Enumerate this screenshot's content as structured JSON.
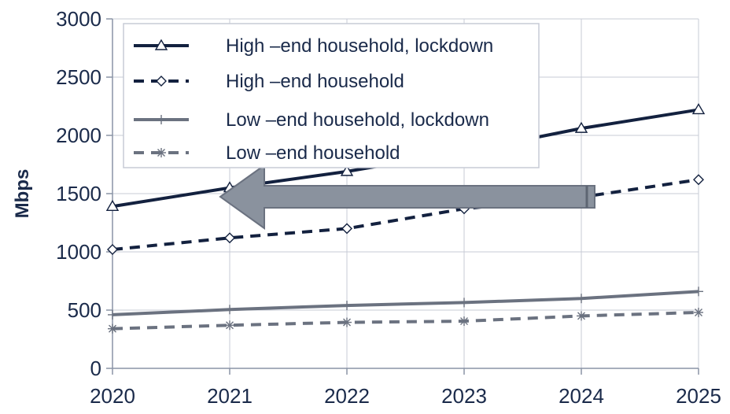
{
  "chart_data": {
    "type": "line",
    "title": "",
    "xlabel": "",
    "ylabel": "Mbps",
    "x": [
      "2020",
      "2021",
      "2022",
      "2023",
      "2024",
      "2025"
    ],
    "ylim": [
      0,
      3000
    ],
    "yticks": [
      "0",
      "500",
      "1000",
      "1500",
      "2000",
      "2500",
      "3000"
    ],
    "grid": true,
    "legend_position": "top-left",
    "series": [
      {
        "name": "High –end household, lockdown",
        "values": [
          1390,
          1550,
          1690,
          1860,
          2060,
          2220
        ],
        "color": "#13213f",
        "dash": "solid",
        "marker": "triangle"
      },
      {
        "name": "High –end household",
        "values": [
          1020,
          1120,
          1200,
          1370,
          1470,
          1620
        ],
        "color": "#13213f",
        "dash": "dashed",
        "marker": "diamond"
      },
      {
        "name": "Low –end household, lockdown",
        "values": [
          460,
          505,
          540,
          565,
          600,
          660
        ],
        "color": "#6b7280",
        "dash": "solid",
        "marker": "plus"
      },
      {
        "name": "Low –end household",
        "values": [
          340,
          370,
          395,
          405,
          450,
          480
        ],
        "color": "#6b7280",
        "dash": "dashed",
        "marker": "star"
      }
    ],
    "annotations": [
      {
        "kind": "arrow",
        "direction": "left",
        "color": "#8a929e"
      }
    ]
  }
}
